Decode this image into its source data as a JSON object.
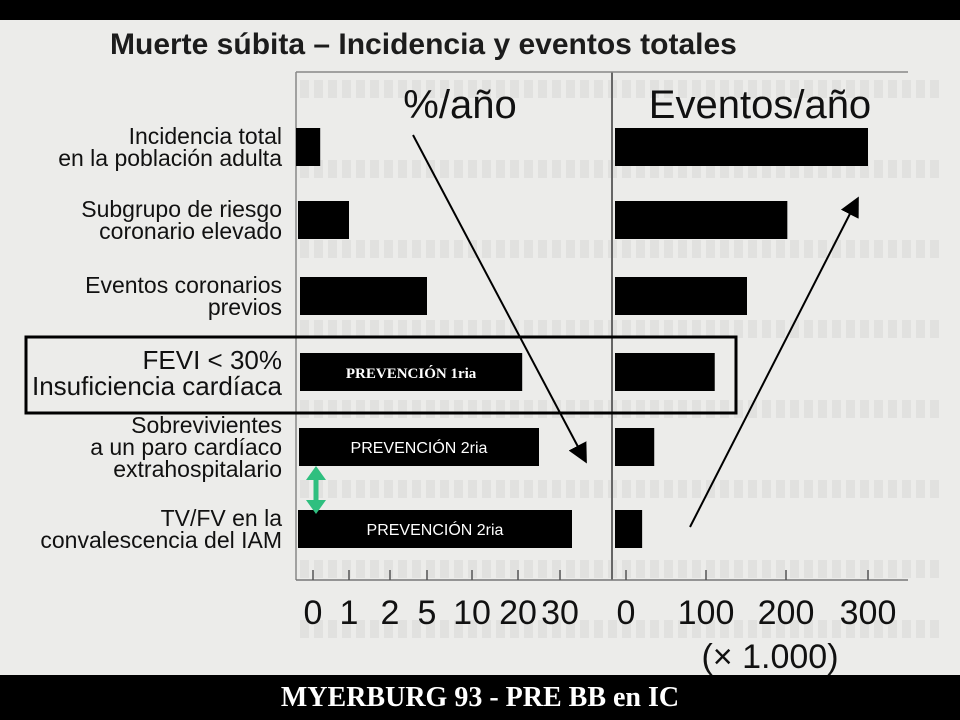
{
  "title": "Muerte súbita – Incidencia y eventos totales",
  "footer": "MYERBURG 93 - PRE BB en IC",
  "chart_data": {
    "type": "bar",
    "panels": [
      {
        "header": "%/año",
        "scale": "log-like",
        "ticks": [
          "0",
          "1",
          "2",
          "5",
          "10",
          "20",
          "30"
        ],
        "tick_values": [
          0,
          1,
          2,
          5,
          10,
          20,
          30
        ]
      },
      {
        "header": "Eventos/año",
        "ticks": [
          "0",
          "100",
          "200",
          "300"
        ],
        "tick_values": [
          0,
          100,
          200,
          300
        ],
        "unit": "(× 1.000)"
      }
    ],
    "categories": [
      "Incidencia total\nen la población adulta",
      "Subgrupo de riesgo\ncoronario elevado",
      "Eventos coronarios\nprevios",
      "FEVI < 30%\nInsuficiencia cardíaca",
      "Sobrevivientes\na un paro cardíaco\nextrahospitalario",
      "TV/FV en la\nconvalescencia del IAM"
    ],
    "series": [
      {
        "values": [
          0.2,
          1,
          5,
          21,
          25,
          33
        ]
      },
      {
        "values": [
          300,
          200,
          150,
          110,
          35,
          20
        ]
      }
    ],
    "bar_labels": [
      "",
      "",
      "",
      "PREVENCIÓN 1ria",
      "PREVENCIÓN 2ria",
      "PREVENCIÓN 2ria"
    ],
    "highlight_row": "FEVI < 30%\nInsuficiencia cardíaca"
  },
  "colors": {
    "bar": "#000000",
    "arrow_green": "#2fbf7f",
    "background": "#ececea"
  }
}
